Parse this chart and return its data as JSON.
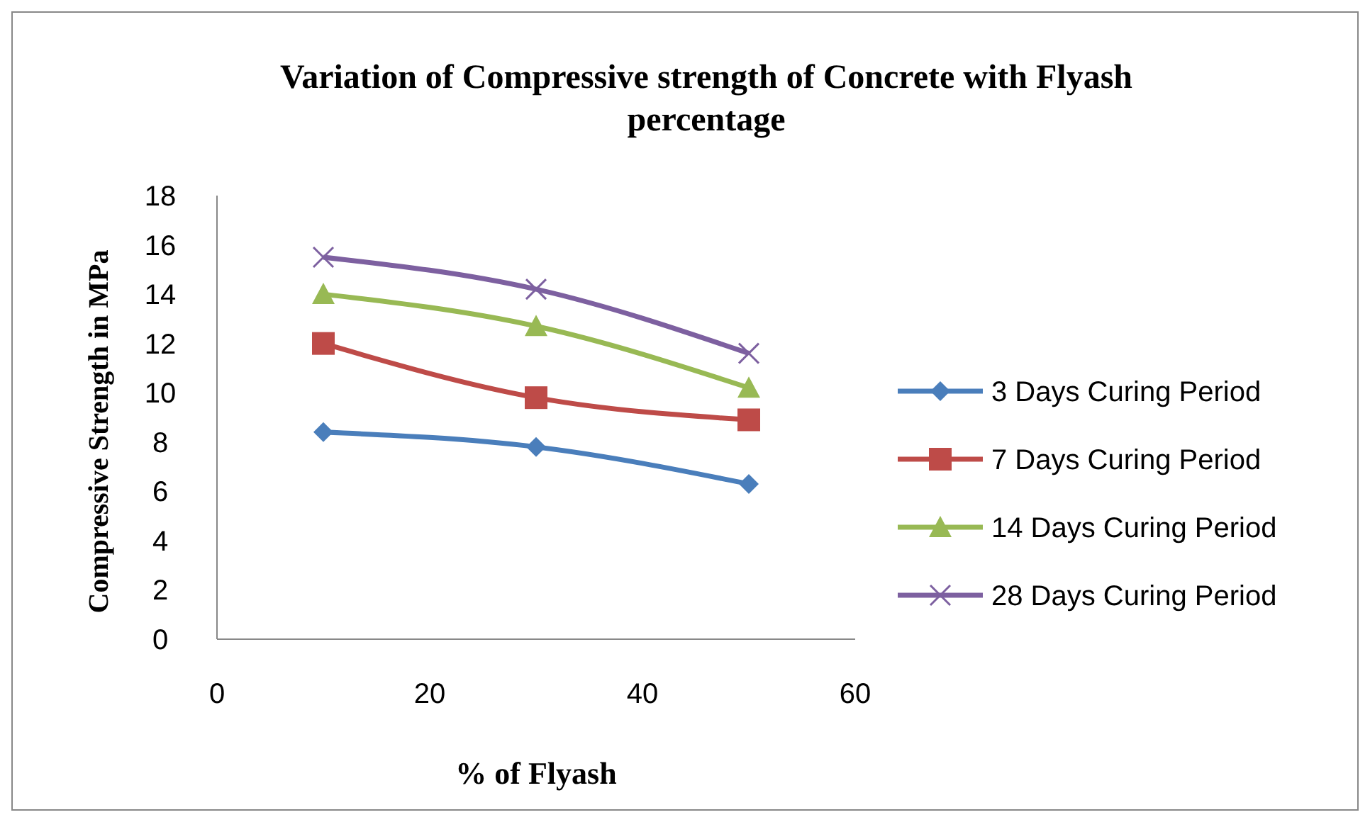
{
  "chart_data": {
    "type": "line",
    "title": "Variation of Compressive strength of Concrete with Flyash percentage",
    "xlabel": "% of Flyash",
    "ylabel": "Compressive Strength in MPa",
    "x": [
      10,
      30,
      50
    ],
    "xlim": [
      0,
      60
    ],
    "xticks": [
      0,
      20,
      40,
      60
    ],
    "ylim": [
      0,
      18
    ],
    "yticks": [
      0,
      2,
      4,
      6,
      8,
      10,
      12,
      14,
      16,
      18
    ],
    "grid": false,
    "legend": "right",
    "line_style": "solid",
    "series": [
      {
        "name": "3 Days Curing Period",
        "color": "#4a7ebb",
        "marker": "diamond",
        "values": [
          8.4,
          7.8,
          6.3
        ]
      },
      {
        "name": "7 Days Curing Period",
        "color": "#be4b48",
        "marker": "square",
        "values": [
          12.0,
          9.8,
          8.9
        ]
      },
      {
        "name": "14 Days Curing Period",
        "color": "#98b954",
        "marker": "triangle",
        "values": [
          14.0,
          12.7,
          10.2
        ]
      },
      {
        "name": "28 Days Curing Period",
        "color": "#7d60a0",
        "marker": "cross",
        "values": [
          15.5,
          14.2,
          11.6
        ]
      }
    ]
  }
}
